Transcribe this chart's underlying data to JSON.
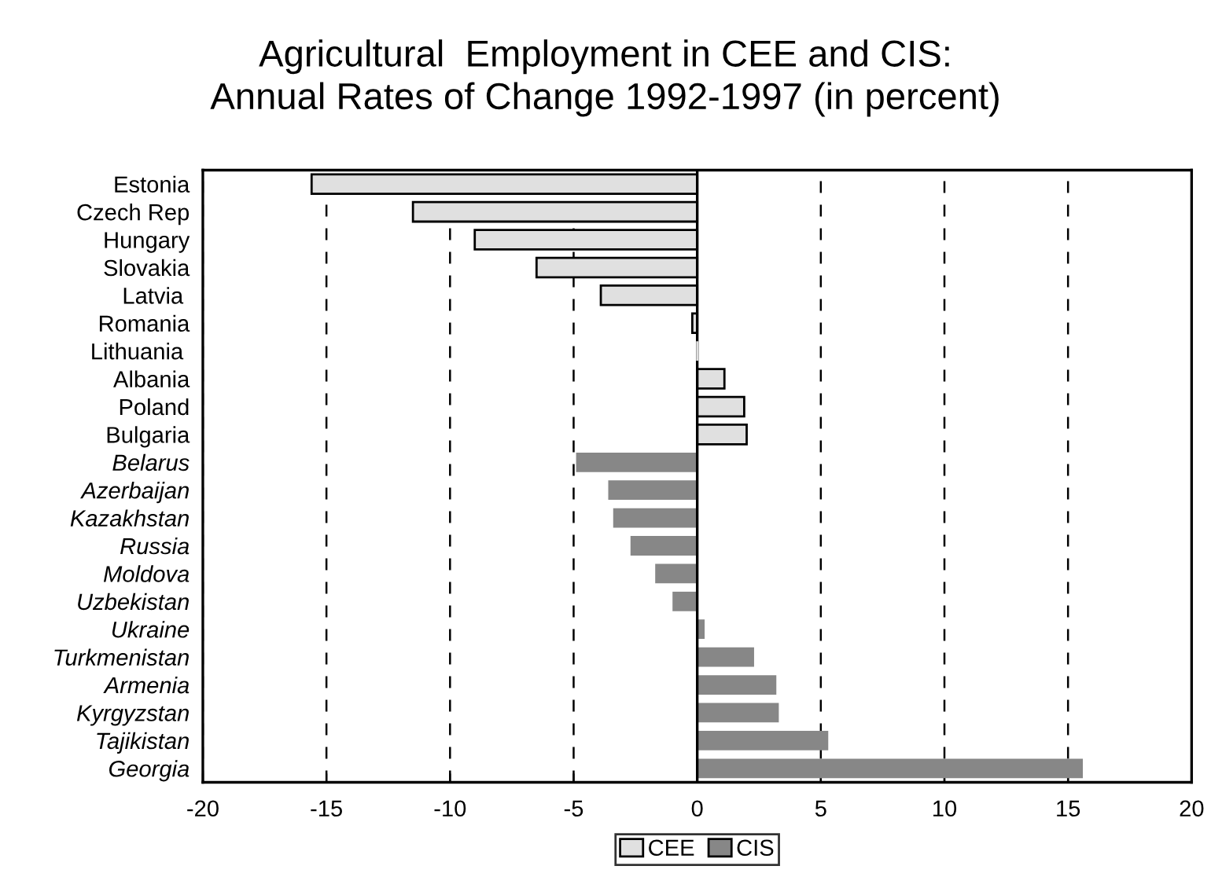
{
  "chart_data": {
    "type": "bar",
    "orientation": "horizontal",
    "title": "Agricultural  Employment in CEE and CIS:\nAnnual Rates of Change 1992-1997 (in percent)",
    "categories": [
      "Estonia",
      "Czech Rep",
      "Hungary",
      "Slovakia",
      "Latvia ",
      "Romania",
      "Lithuania ",
      "Albania",
      "Poland",
      "Bulgaria",
      "Belarus",
      "Azerbaijan",
      "Kazakhstan",
      "Russia",
      "Moldova",
      "Uzbekistan",
      "Ukraine",
      "Turkmenistan",
      "Armenia",
      "Kyrgyzstan",
      "Tajikistan",
      "Georgia"
    ],
    "series": [
      {
        "name": "CEE",
        "color": "#e0e0e0",
        "values": [
          -15.6,
          -11.5,
          -9.0,
          -6.5,
          -3.9,
          -0.2,
          0,
          1.1,
          1.9,
          2.0,
          null,
          null,
          null,
          null,
          null,
          null,
          null,
          null,
          null,
          null,
          null,
          null
        ]
      },
      {
        "name": "CIS",
        "color": "#878787",
        "values": [
          null,
          null,
          null,
          null,
          null,
          null,
          null,
          null,
          null,
          null,
          -4.9,
          -3.6,
          -3.4,
          -2.7,
          -1.7,
          -1.0,
          0.3,
          2.3,
          3.2,
          3.3,
          5.3,
          15.6
        ]
      }
    ],
    "xlim": [
      -20,
      20
    ],
    "xticks": [
      -20,
      -15,
      -10,
      -5,
      0,
      5,
      10,
      15,
      20
    ],
    "grid": "x",
    "legend": "bottom"
  }
}
